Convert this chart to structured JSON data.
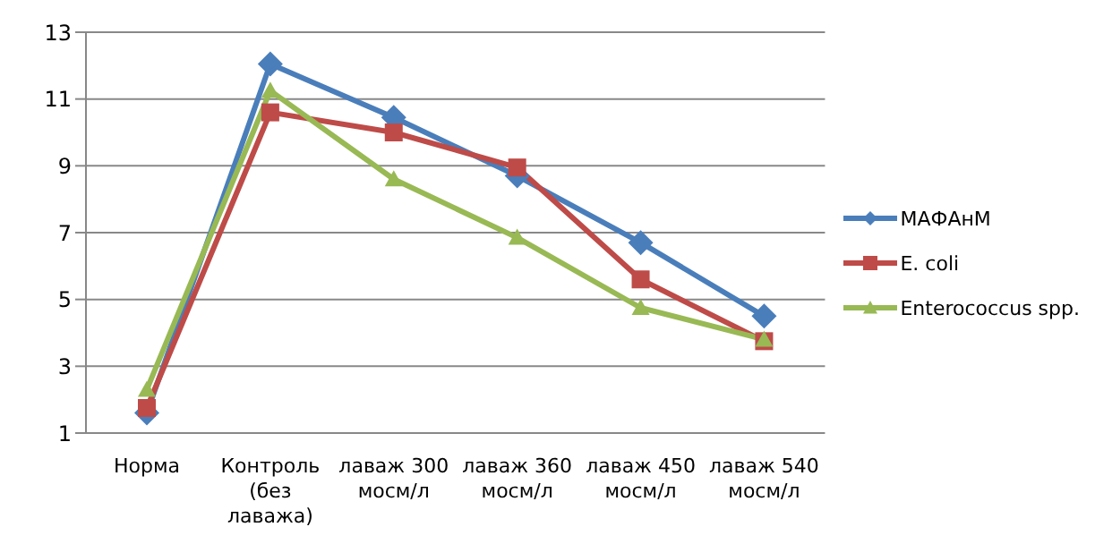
{
  "chart_data": {
    "type": "line",
    "categories": [
      "Норма",
      "Контроль (без лаважа)",
      "лаваж 300 мосм/л",
      "лаваж 360 мосм/л",
      "лаваж 450 мосм/л",
      "лаваж 540 мосм/л"
    ],
    "series": [
      {
        "name": "МАФАнМ",
        "color": "#4a7ebb",
        "marker": "diamond",
        "values": [
          1.6,
          12.05,
          10.45,
          8.7,
          6.7,
          4.5
        ]
      },
      {
        "name": "E. coli",
        "color": "#be4b48",
        "marker": "square",
        "values": [
          1.75,
          10.6,
          10.0,
          8.95,
          5.6,
          3.75
        ]
      },
      {
        "name": "Enterococcus spp.",
        "color": "#98b954",
        "marker": "triangle",
        "values": [
          2.3,
          11.25,
          8.6,
          6.85,
          4.75,
          3.8
        ]
      }
    ],
    "ylim": [
      1,
      13
    ],
    "yticks": [
      1,
      3,
      5,
      7,
      9,
      11,
      13
    ],
    "grid": "y",
    "legend": "right"
  }
}
